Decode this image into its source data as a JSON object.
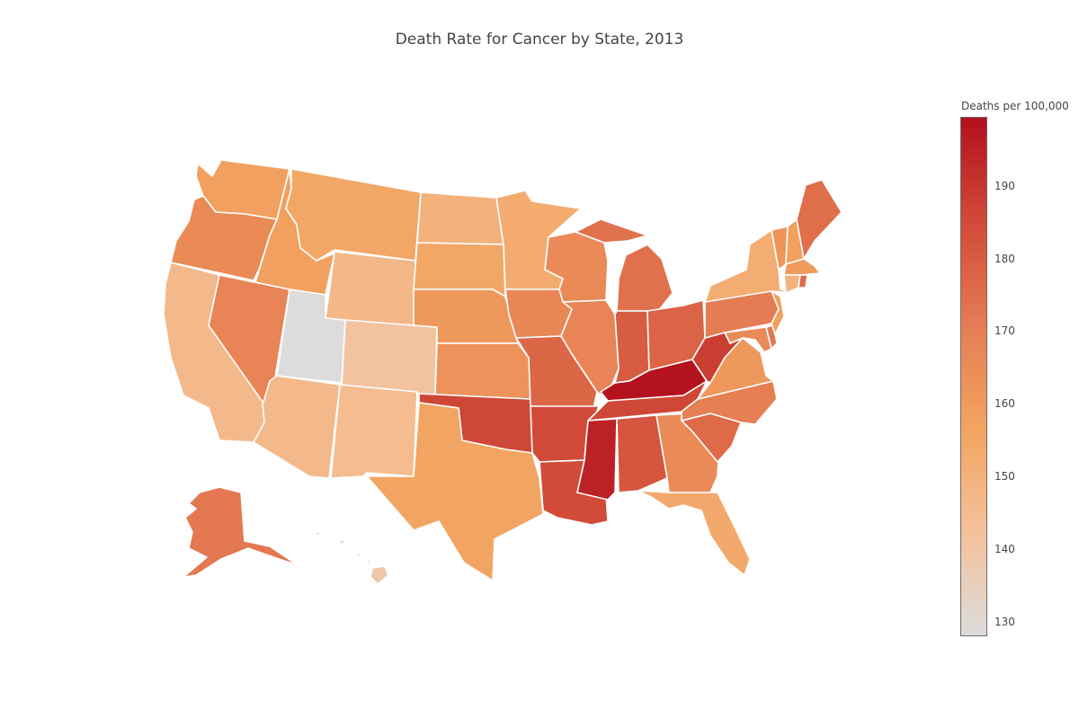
{
  "title": "Death Rate for Cancer by State, 2013",
  "colorbar": {
    "title": "Deaths per 100,000",
    "min": 128,
    "max": 199.5,
    "ticks": [
      "130",
      "140",
      "150",
      "160",
      "170",
      "180",
      "190"
    ],
    "stops": [
      "#dcdcdc",
      "#f5c19a",
      "#f2a460",
      "#e57c53",
      "#d14a38",
      "#b2101d"
    ]
  },
  "map_data": {
    "type": "choropleth",
    "scope": "usa",
    "unit": "Deaths per 100,000",
    "states": [
      {
        "state": "Alabama",
        "value": 182
      },
      {
        "state": "Alaska",
        "value": 172
      },
      {
        "state": "Arizona",
        "value": 146
      },
      {
        "state": "Arkansas",
        "value": 185
      },
      {
        "state": "California",
        "value": 146
      },
      {
        "state": "Colorado",
        "value": 141
      },
      {
        "state": "Connecticut",
        "value": 149
      },
      {
        "state": "Delaware",
        "value": 172
      },
      {
        "state": "Florida",
        "value": 154
      },
      {
        "state": "Georgia",
        "value": 166
      },
      {
        "state": "Hawaii",
        "value": 139
      },
      {
        "state": "Idaho",
        "value": 158
      },
      {
        "state": "Illinois",
        "value": 168
      },
      {
        "state": "Indiana",
        "value": 180
      },
      {
        "state": "Iowa",
        "value": 167
      },
      {
        "state": "Kansas",
        "value": 163
      },
      {
        "state": "Kentucky",
        "value": 199
      },
      {
        "state": "Louisiana",
        "value": 185
      },
      {
        "state": "Maine",
        "value": 175
      },
      {
        "state": "Maryland",
        "value": 166
      },
      {
        "state": "Massachusetts",
        "value": 160
      },
      {
        "state": "Michigan",
        "value": 174
      },
      {
        "state": "Minnesota",
        "value": 153
      },
      {
        "state": "Mississippi",
        "value": 195
      },
      {
        "state": "Missouri",
        "value": 177
      },
      {
        "state": "Montana",
        "value": 155
      },
      {
        "state": "Nebraska",
        "value": 161
      },
      {
        "state": "Nevada",
        "value": 168
      },
      {
        "state": "New Hampshire",
        "value": 158
      },
      {
        "state": "New Jersey",
        "value": 158
      },
      {
        "state": "New Mexico",
        "value": 145
      },
      {
        "state": "New York",
        "value": 152
      },
      {
        "state": "North Carolina",
        "value": 170
      },
      {
        "state": "North Dakota",
        "value": 150
      },
      {
        "state": "Ohio",
        "value": 178
      },
      {
        "state": "Oklahoma",
        "value": 186
      },
      {
        "state": "Oregon",
        "value": 166
      },
      {
        "state": "Pennsylvania",
        "value": 171
      },
      {
        "state": "Rhode Island",
        "value": 176
      },
      {
        "state": "South Carolina",
        "value": 176
      },
      {
        "state": "South Dakota",
        "value": 155
      },
      {
        "state": "Tennessee",
        "value": 186
      },
      {
        "state": "Texas",
        "value": 156
      },
      {
        "state": "Utah",
        "value": 128
      },
      {
        "state": "Vermont",
        "value": 162
      },
      {
        "state": "Virginia",
        "value": 161
      },
      {
        "state": "Washington",
        "value": 158
      },
      {
        "state": "West Virginia",
        "value": 188
      },
      {
        "state": "Wisconsin",
        "value": 166
      },
      {
        "state": "Wyoming",
        "value": 147
      }
    ]
  }
}
